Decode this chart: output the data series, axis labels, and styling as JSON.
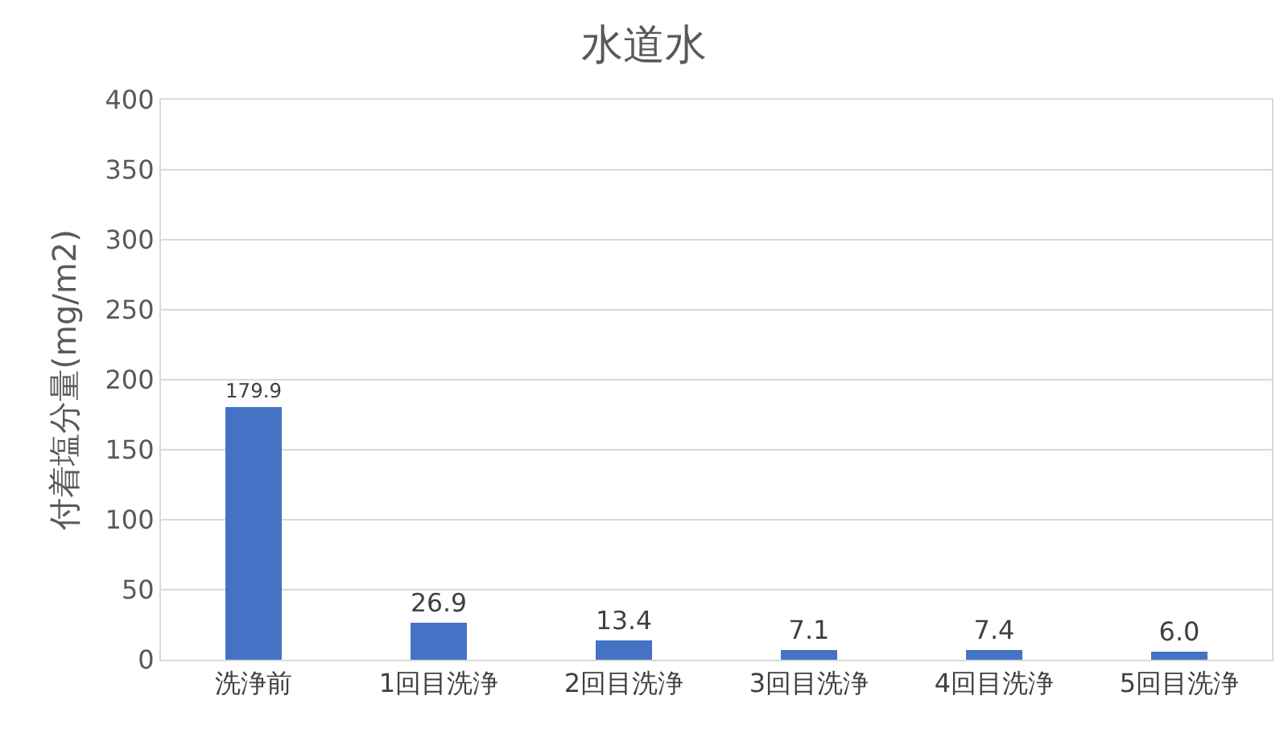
{
  "chart_data": {
    "type": "bar",
    "title": "水道水",
    "ylabel": "付着塩分量(mg/m2)",
    "categories": [
      "洗浄前",
      "1回目洗浄",
      "2回目洗浄",
      "3回目洗浄",
      "4回目洗浄",
      "5回目洗浄"
    ],
    "values": [
      179.9,
      26.9,
      13.4,
      7.1,
      7.4,
      6.0
    ],
    "value_labels": [
      "179.9",
      "26.9",
      "13.4",
      "7.1",
      "7.4",
      "6.0"
    ],
    "color": "#4472c4",
    "ylim": [
      0,
      400
    ],
    "yticks": [
      0,
      50,
      100,
      150,
      200,
      250,
      300,
      350,
      400
    ],
    "grid": "y",
    "legend": false
  }
}
